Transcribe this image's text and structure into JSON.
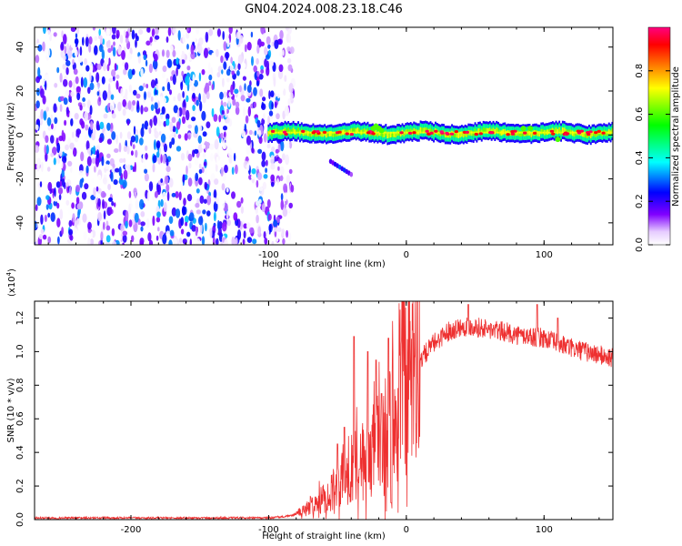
{
  "title": "GN04.2024.008.23.18.C46",
  "chart_data": [
    {
      "type": "heatmap",
      "xlabel": "Height of straight line (km)",
      "ylabel": "Frequency (Hz)",
      "xlim": [
        -270,
        150
      ],
      "ylim": [
        -50,
        49
      ],
      "xticks": [
        -200,
        -100,
        0,
        100
      ],
      "yticks": [
        -40,
        -20,
        0,
        20,
        40
      ],
      "colorbar": {
        "label": "Normalized spectral amplitude",
        "range": [
          0,
          1
        ],
        "ticks": [
          "0.0",
          "0.2",
          "0.4",
          "0.6",
          "0.8"
        ],
        "colors": [
          "#ffffff",
          "#e6ccff",
          "#8000ff",
          "#0000ff",
          "#00ffff",
          "#00ff00",
          "#ffff00",
          "#ff8000",
          "#ff0000",
          "#ff0080"
        ]
      },
      "regions": [
        {
          "x": [
            -270,
            -82
          ],
          "freq_range": [
            -50,
            49
          ],
          "amplitude_range": [
            0.0,
            0.35
          ]
        },
        {
          "x": [
            -100,
            150
          ],
          "freq_center": 1,
          "freq_halfwidth": 3,
          "amplitude_range": [
            0.4,
            1.0
          ]
        },
        {
          "x": [
            -55,
            -40
          ],
          "freq_range": [
            -18,
            -12
          ],
          "amplitude_range": [
            0.1,
            0.3
          ]
        }
      ]
    },
    {
      "type": "line",
      "xlabel": "Height of straight line (km)",
      "ylabel": "SNR (10 * v/v)",
      "y_multiplier": "(x10",
      "y_exponent": "4",
      "y_multiplier_close": ")",
      "xlim": [
        -270,
        150
      ],
      "ylim": [
        0,
        1.3
      ],
      "xticks": [
        -200,
        -100,
        0,
        100
      ],
      "yticks": [
        "0.0",
        "0.2",
        "0.4",
        "0.6",
        "0.8",
        "1.0",
        "1.2"
      ],
      "color": "#ee3030",
      "series": [
        {
          "x": [
            -270,
            -200,
            -150,
            -100,
            -85,
            -75,
            -65,
            -55,
            -50,
            -45,
            -40,
            -35,
            -30,
            -25,
            -20,
            -15,
            -10,
            -5,
            0,
            10,
            20,
            30,
            40,
            50,
            60,
            70,
            80,
            90,
            100,
            110,
            120,
            130,
            140,
            150
          ],
          "y": [
            0.01,
            0.01,
            0.01,
            0.01,
            0.02,
            0.05,
            0.1,
            0.15,
            0.2,
            0.25,
            0.3,
            0.32,
            0.35,
            0.4,
            0.45,
            0.5,
            0.6,
            0.7,
            0.8,
            0.95,
            1.05,
            1.12,
            1.15,
            1.15,
            1.13,
            1.12,
            1.1,
            1.09,
            1.08,
            1.05,
            1.02,
            1.0,
            0.98,
            0.96
          ],
          "spikes": [
            {
              "x": -50,
              "y": 0.45
            },
            {
              "x": -45,
              "y": 0.55
            },
            {
              "x": -38,
              "y": 1.09
            },
            {
              "x": -34,
              "y": 0.3
            },
            {
              "x": -28,
              "y": 1.0
            },
            {
              "x": -22,
              "y": 0.95
            },
            {
              "x": -18,
              "y": 0.75
            },
            {
              "x": -13,
              "y": 1.08
            },
            {
              "x": -11,
              "y": 0.1
            },
            {
              "x": 45,
              "y": 1.28
            },
            {
              "x": 95,
              "y": 1.28
            },
            {
              "x": 110,
              "y": 1.2
            }
          ]
        }
      ]
    }
  ]
}
